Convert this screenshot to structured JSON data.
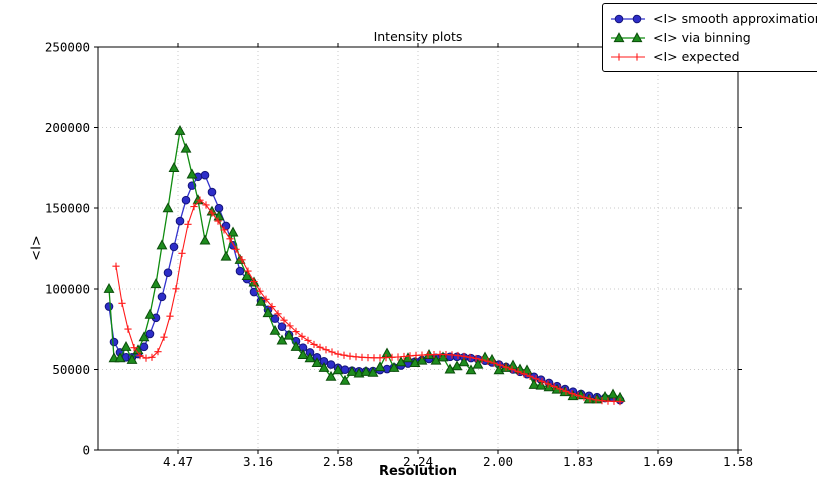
{
  "chart_data": {
    "type": "line",
    "title": "Intensity plots",
    "xlabel": "Resolution",
    "ylabel": "<I>",
    "grid": true,
    "legend_position": "top-right-outside",
    "xlim": [
      0,
      0.4
    ],
    "ylim": [
      0,
      250000
    ],
    "xticks": [
      {
        "pos": 0.05,
        "label": "4.47"
      },
      {
        "pos": 0.1,
        "label": "3.16"
      },
      {
        "pos": 0.15,
        "label": "2.58"
      },
      {
        "pos": 0.2,
        "label": "2.24"
      },
      {
        "pos": 0.25,
        "label": "2.00"
      },
      {
        "pos": 0.3,
        "label": "1.83"
      },
      {
        "pos": 0.35,
        "label": "1.69"
      },
      {
        "pos": 0.4,
        "label": "1.58"
      }
    ],
    "yticks": [
      {
        "pos": 0,
        "label": "0"
      },
      {
        "pos": 50000,
        "label": "50000"
      },
      {
        "pos": 100000,
        "label": "100000"
      },
      {
        "pos": 150000,
        "label": "150000"
      },
      {
        "pos": 200000,
        "label": "200000"
      },
      {
        "pos": 250000,
        "label": "250000"
      }
    ],
    "series": [
      {
        "name": "<I> smooth approximation",
        "marker": "circle",
        "color": "#3232cd",
        "marker_fill": "#2d2dc8",
        "marker_edge": "#14147a",
        "x": [
          0.00688,
          0.01,
          0.01375,
          0.0175,
          0.02125,
          0.025,
          0.02875,
          0.0325,
          0.03625,
          0.04,
          0.04375,
          0.0475,
          0.05125,
          0.055,
          0.05875,
          0.0625,
          0.06688,
          0.07125,
          0.07563,
          0.08,
          0.08438,
          0.08875,
          0.09313,
          0.0975,
          0.10188,
          0.10625,
          0.11063,
          0.115,
          0.11938,
          0.12375,
          0.12813,
          0.1325,
          0.13688,
          0.14125,
          0.14563,
          0.15,
          0.15438,
          0.15875,
          0.16313,
          0.1675,
          0.17188,
          0.17625,
          0.18063,
          0.185,
          0.18938,
          0.19375,
          0.19813,
          0.2025,
          0.20688,
          0.21125,
          0.21563,
          0.22,
          0.22438,
          0.22875,
          0.23313,
          0.2375,
          0.24188,
          0.24625,
          0.25063,
          0.255,
          0.25938,
          0.26375,
          0.26813,
          0.2725,
          0.27688,
          0.28188,
          0.28688,
          0.29188,
          0.29688,
          0.30188,
          0.30688,
          0.31188,
          0.31688,
          0.32188,
          0.32625
        ],
        "y": [
          89000,
          67000,
          60500,
          57500,
          57500,
          59500,
          64000,
          72000,
          82000,
          95000,
          110000,
          126000,
          142000,
          155000,
          164000,
          169500,
          170500,
          160000,
          150000,
          139000,
          127000,
          111000,
          106000,
          98000,
          92500,
          87000,
          81500,
          76500,
          71500,
          67500,
          63500,
          60500,
          57500,
          55000,
          53000,
          51000,
          49800,
          49200,
          48800,
          48800,
          49000,
          49600,
          50200,
          51200,
          52400,
          53600,
          54800,
          55800,
          56500,
          57200,
          57600,
          57800,
          57800,
          57500,
          57000,
          56300,
          55400,
          54300,
          53000,
          51500,
          50000,
          48500,
          47000,
          45400,
          43600,
          41600,
          39600,
          37800,
          36200,
          34800,
          33600,
          32800,
          32200,
          32400,
          31000
        ]
      },
      {
        "name": "<I> via binning",
        "marker": "triangle",
        "color": "#0f8c0f",
        "marker_fill": "#1e8c1e",
        "marker_edge": "#0a4d0a",
        "x": [
          0.00688,
          0.01,
          0.01375,
          0.0175,
          0.02125,
          0.025,
          0.02875,
          0.0325,
          0.03625,
          0.04,
          0.04375,
          0.0475,
          0.05125,
          0.055,
          0.05875,
          0.0625,
          0.06688,
          0.07125,
          0.07563,
          0.08,
          0.08438,
          0.08875,
          0.09313,
          0.0975,
          0.10188,
          0.10625,
          0.11063,
          0.115,
          0.11938,
          0.12375,
          0.12813,
          0.1325,
          0.13688,
          0.14125,
          0.14563,
          0.15,
          0.15438,
          0.15875,
          0.16313,
          0.1675,
          0.17188,
          0.17625,
          0.18063,
          0.185,
          0.18938,
          0.19375,
          0.19813,
          0.2025,
          0.20688,
          0.21125,
          0.21563,
          0.22,
          0.22438,
          0.22875,
          0.23313,
          0.2375,
          0.24188,
          0.24625,
          0.25063,
          0.255,
          0.25938,
          0.26375,
          0.26813,
          0.2725,
          0.27688,
          0.28188,
          0.28688,
          0.29188,
          0.29688,
          0.30188,
          0.30688,
          0.31188,
          0.31688,
          0.32188,
          0.32625
        ],
        "y": [
          100000,
          57000,
          57000,
          64000,
          56000,
          62000,
          70000,
          84000,
          103000,
          127000,
          150000,
          175000,
          198000,
          187000,
          171000,
          155000,
          130000,
          148000,
          145000,
          120000,
          135000,
          118000,
          108000,
          104000,
          92000,
          85000,
          74000,
          68000,
          71000,
          64000,
          59000,
          57000,
          54000,
          51000,
          45500,
          49500,
          43000,
          48500,
          47500,
          48500,
          48000,
          51500,
          60000,
          51000,
          54500,
          57000,
          54000,
          55500,
          59000,
          55500,
          57500,
          50000,
          52000,
          54500,
          49500,
          53000,
          57500,
          56000,
          49500,
          51000,
          52500,
          50000,
          49500,
          40500,
          40000,
          39000,
          37500,
          36000,
          33500,
          34000,
          31500,
          31500,
          33000,
          34500,
          32500
        ]
      },
      {
        "name": "<I> expected",
        "marker": "plus",
        "color": "#ff1a1a",
        "marker_fill": "#ff1a1a",
        "marker_edge": "#ff1a1a",
        "x": [
          0.01125,
          0.015,
          0.01875,
          0.0225,
          0.02625,
          0.03,
          0.03375,
          0.0375,
          0.04125,
          0.045,
          0.04875,
          0.0525,
          0.05625,
          0.06,
          0.06375,
          0.0675,
          0.07125,
          0.075,
          0.07875,
          0.0825,
          0.08625,
          0.09,
          0.09375,
          0.0975,
          0.10125,
          0.105,
          0.10875,
          0.1125,
          0.11625,
          0.12,
          0.12375,
          0.1275,
          0.13125,
          0.135,
          0.13875,
          0.1425,
          0.14625,
          0.15,
          0.15375,
          0.1575,
          0.16125,
          0.165,
          0.16875,
          0.1725,
          0.17625,
          0.18,
          0.18375,
          0.1875,
          0.19125,
          0.195,
          0.19875,
          0.2025,
          0.20625,
          0.21,
          0.21375,
          0.2175,
          0.22125,
          0.225,
          0.22875,
          0.2325,
          0.23625,
          0.24,
          0.24375,
          0.2475,
          0.25125,
          0.255,
          0.25875,
          0.2625,
          0.26625,
          0.27,
          0.27375,
          0.2775,
          0.28125,
          0.285,
          0.28875,
          0.2925,
          0.29625,
          0.3,
          0.30375,
          0.3075,
          0.31125,
          0.315,
          0.31875,
          0.3225,
          0.32625
        ],
        "y": [
          114000,
          91000,
          75000,
          63500,
          58500,
          57000,
          57500,
          61000,
          70000,
          83000,
          100000,
          122000,
          140000,
          151000,
          155000,
          152000,
          147000,
          142000,
          136500,
          131000,
          124500,
          118000,
          111000,
          104500,
          98500,
          93500,
          89000,
          84500,
          80500,
          77000,
          73500,
          70500,
          68000,
          65500,
          63700,
          62200,
          60800,
          59500,
          58800,
          58200,
          57800,
          57500,
          57300,
          57200,
          57200,
          57300,
          57500,
          57700,
          58000,
          58400,
          58700,
          58900,
          59100,
          59200,
          59300,
          59200,
          59000,
          58600,
          58100,
          57500,
          56800,
          55900,
          55000,
          53900,
          52700,
          51400,
          50000,
          48600,
          47200,
          45700,
          44200,
          42600,
          41000,
          39400,
          37900,
          36400,
          35000,
          33800,
          32700,
          31800,
          31100,
          30600,
          30300,
          30200,
          30000
        ]
      }
    ],
    "style": {
      "grid_color": "#c9c9c9",
      "spine_color": "#000000",
      "background": "#ffffff"
    }
  }
}
